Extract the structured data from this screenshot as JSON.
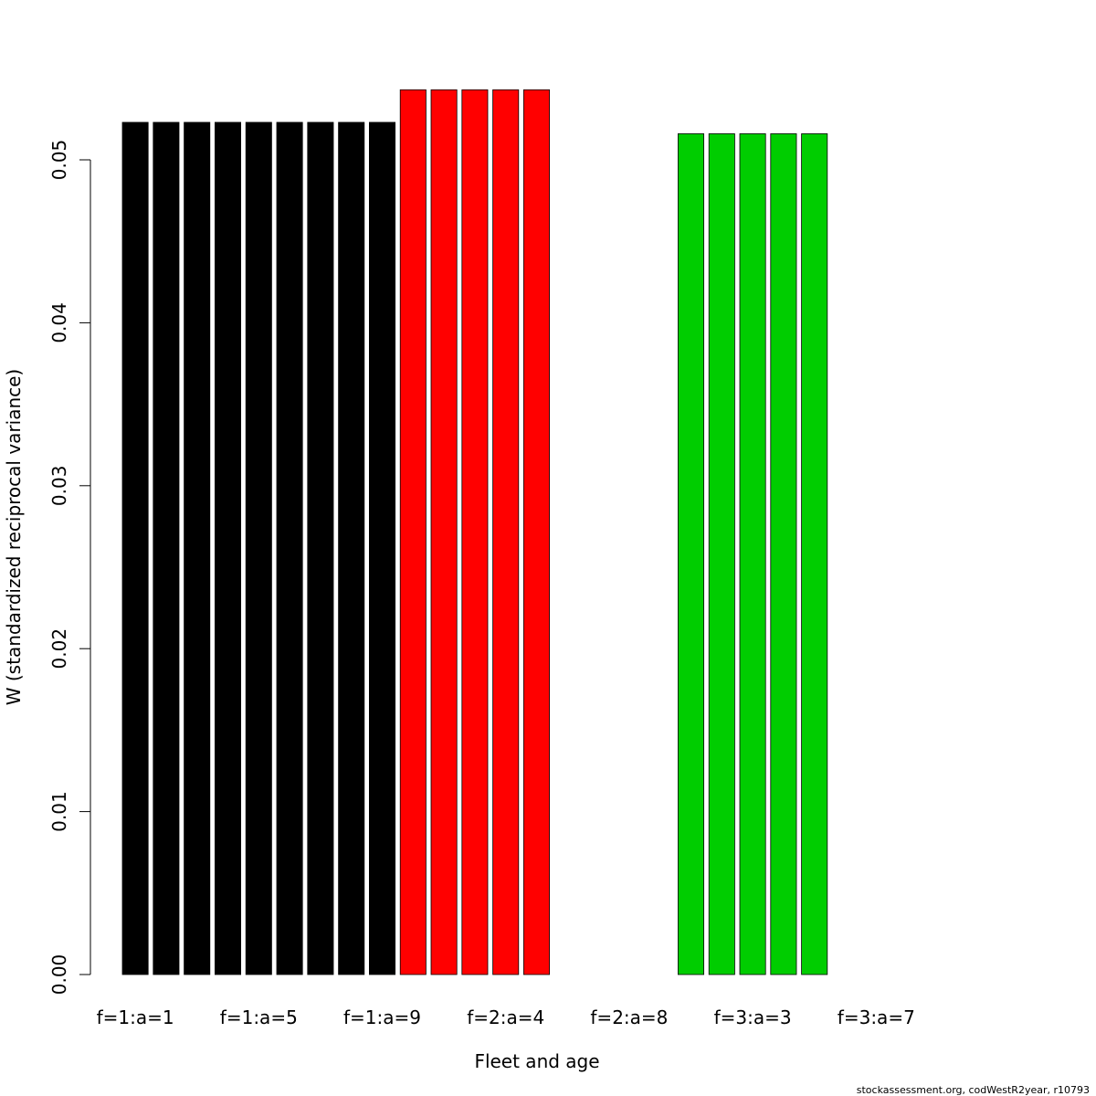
{
  "chart_data": {
    "type": "bar",
    "y_label": "W (standardized reciprocal variance)",
    "x_label": "Fleet and age",
    "footer": "stockassessment.org, codWestR2year, r10793",
    "categories": [
      "f=1:a=1",
      null,
      null,
      null,
      "f=1:a=5",
      null,
      null,
      null,
      "f=1:a=9",
      null,
      null,
      null,
      "f=2:a=4",
      null,
      null,
      null,
      "f=2:a=8",
      null,
      null,
      null,
      "f=3:a=3",
      null,
      null,
      null,
      "f=3:a=7",
      null,
      null
    ],
    "values": [
      0.0523,
      0.0523,
      0.0523,
      0.0523,
      0.0523,
      0.0523,
      0.0523,
      0.0523,
      0.0523,
      0.0543,
      0.0543,
      0.0543,
      0.0543,
      0.0543,
      null,
      null,
      null,
      null,
      0.0516,
      0.0516,
      0.0516,
      0.0516,
      0.0516,
      null,
      null,
      null,
      null
    ],
    "colors": [
      "#000000",
      "#000000",
      "#000000",
      "#000000",
      "#000000",
      "#000000",
      "#000000",
      "#000000",
      "#000000",
      "#ff0000",
      "#ff0000",
      "#ff0000",
      "#ff0000",
      "#ff0000",
      "#ff0000",
      "#ff0000",
      "#ff0000",
      "#ff0000",
      "#00cd00",
      "#00cd00",
      "#00cd00",
      "#00cd00",
      "#00cd00",
      "#00cd00",
      "#00cd00",
      "#00cd00",
      "#00cd00"
    ],
    "ylim": [
      0,
      0.05
    ],
    "yticks": [
      {
        "value": 0,
        "label": "0.00"
      },
      {
        "value": 0.01,
        "label": "0.01"
      },
      {
        "value": 0.02,
        "label": "0.02"
      },
      {
        "value": 0.03,
        "label": "0.03"
      },
      {
        "value": 0.04,
        "label": "0.04"
      },
      {
        "value": 0.05,
        "label": "0.05"
      }
    ]
  }
}
